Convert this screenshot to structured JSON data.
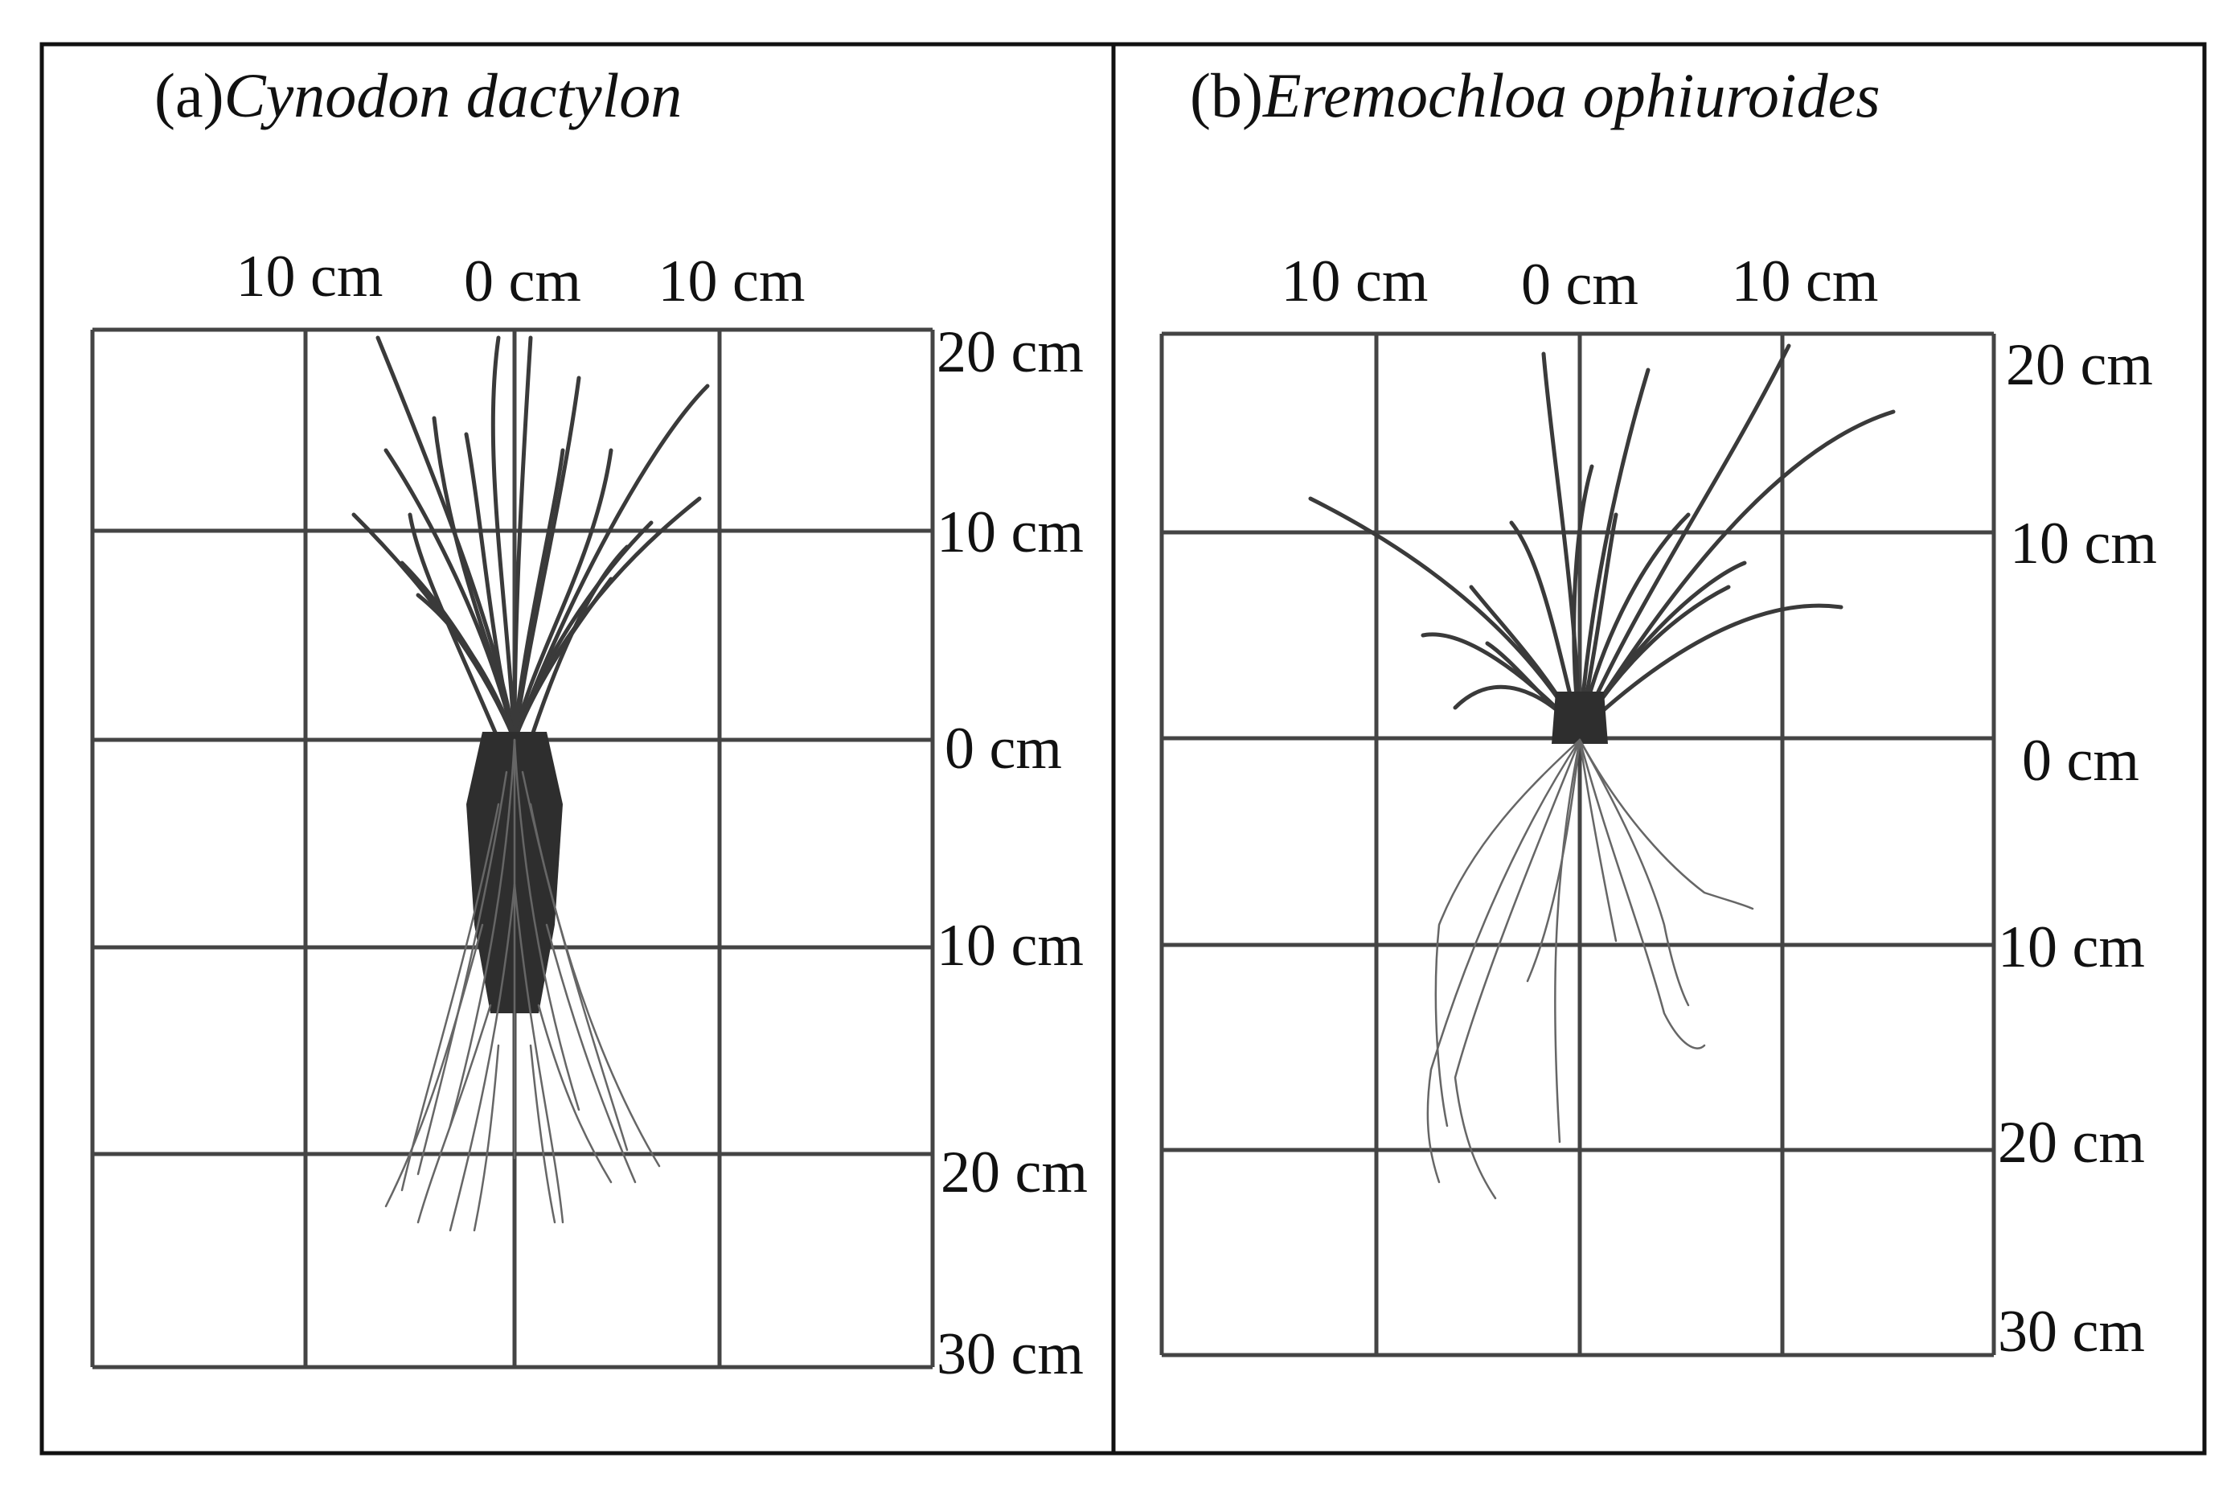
{
  "panels": [
    {
      "id": "a",
      "prefix": "(a)",
      "species": "Cynodon dactylon",
      "x_labels": [
        "10 cm",
        "0 cm",
        "10 cm"
      ],
      "y_labels": [
        "20 cm",
        "10 cm",
        "0 cm",
        "10 cm",
        "20 cm",
        "30 cm"
      ]
    },
    {
      "id": "b",
      "prefix": "(b)",
      "species": "Eremochloa ophiuroides",
      "x_labels": [
        "10 cm",
        "0 cm",
        "10 cm"
      ],
      "y_labels": [
        "20 cm",
        "10 cm",
        "0 cm",
        "10 cm",
        "20 cm",
        "30 cm"
      ]
    }
  ],
  "colors": {
    "frame": "#111111",
    "grid": "#444444",
    "leaves": "#3a3a3a",
    "roots": "#666666"
  }
}
